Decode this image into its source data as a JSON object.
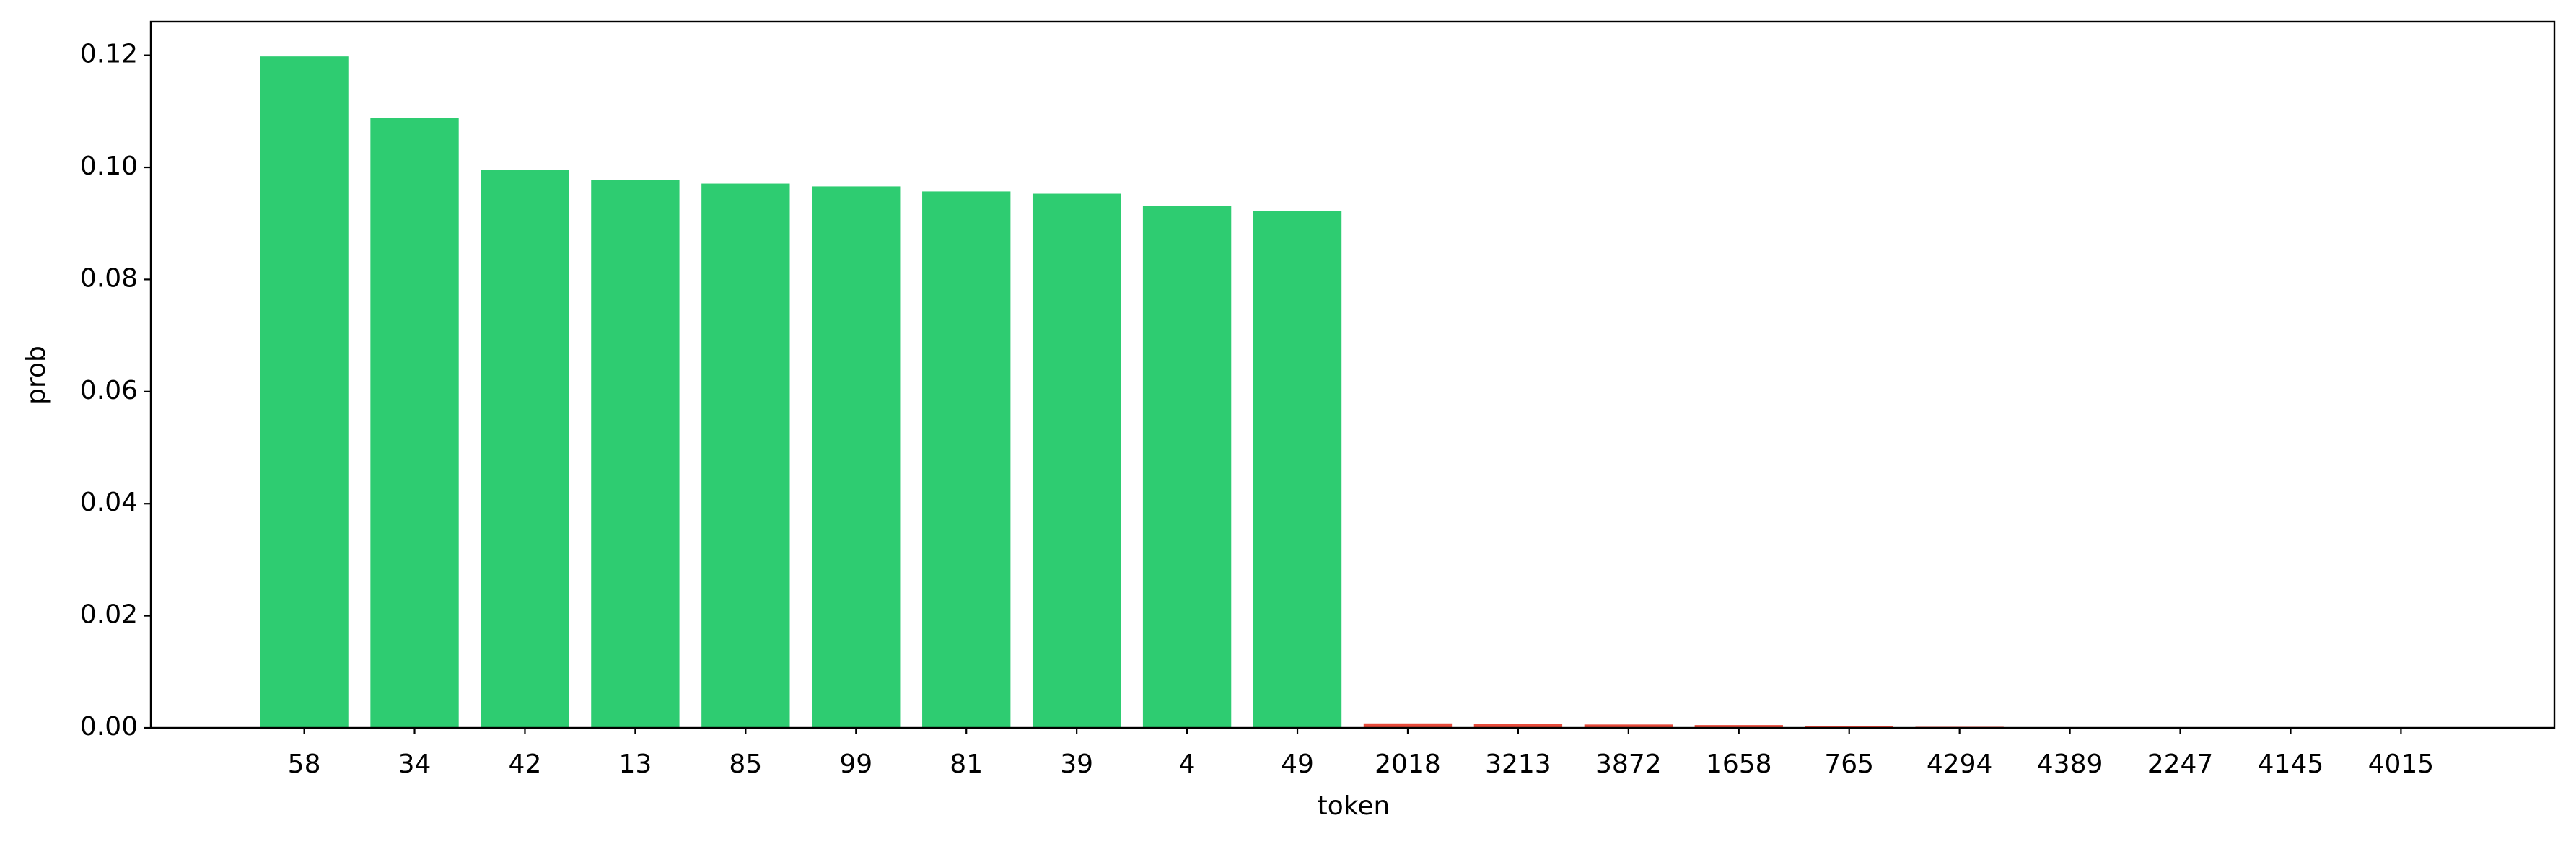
{
  "chart_data": {
    "type": "bar",
    "x_label": "token",
    "y_label": "prob",
    "categories": [
      "58",
      "34",
      "42",
      "13",
      "85",
      "99",
      "81",
      "39",
      "4",
      "49",
      "2018",
      "3213",
      "3872",
      "1658",
      "765",
      "4294",
      "4389",
      "2247",
      "4145",
      "4015"
    ],
    "values": [
      0.1198,
      0.1088,
      0.0995,
      0.0978,
      0.0971,
      0.0966,
      0.0957,
      0.0953,
      0.0931,
      0.0922,
      0.0008,
      0.0007,
      0.0006,
      0.0005,
      0.0003,
      0.0002,
      0.0001,
      0.0001,
      0.0001,
      0.0001
    ],
    "colors": [
      "#2ecc71",
      "#2ecc71",
      "#2ecc71",
      "#2ecc71",
      "#2ecc71",
      "#2ecc71",
      "#2ecc71",
      "#2ecc71",
      "#2ecc71",
      "#2ecc71",
      "#e74c3c",
      "#e74c3c",
      "#e74c3c",
      "#e74c3c",
      "#e74c3c",
      "#e74c3c",
      "#e74c3c",
      "#e74c3c",
      "#e74c3c",
      "#e74c3c"
    ],
    "ylim": [
      0,
      0.126
    ],
    "yticks": [
      {
        "value": 0,
        "label": "0.00"
      },
      {
        "value": 0.02,
        "label": "0.02"
      },
      {
        "value": 0.04,
        "label": "0.04"
      },
      {
        "value": 0.06,
        "label": "0.06"
      },
      {
        "value": 0.08,
        "label": "0.08"
      },
      {
        "value": 0.1,
        "label": "0.10"
      },
      {
        "value": 0.12,
        "label": "0.12"
      }
    ],
    "grid": false
  }
}
